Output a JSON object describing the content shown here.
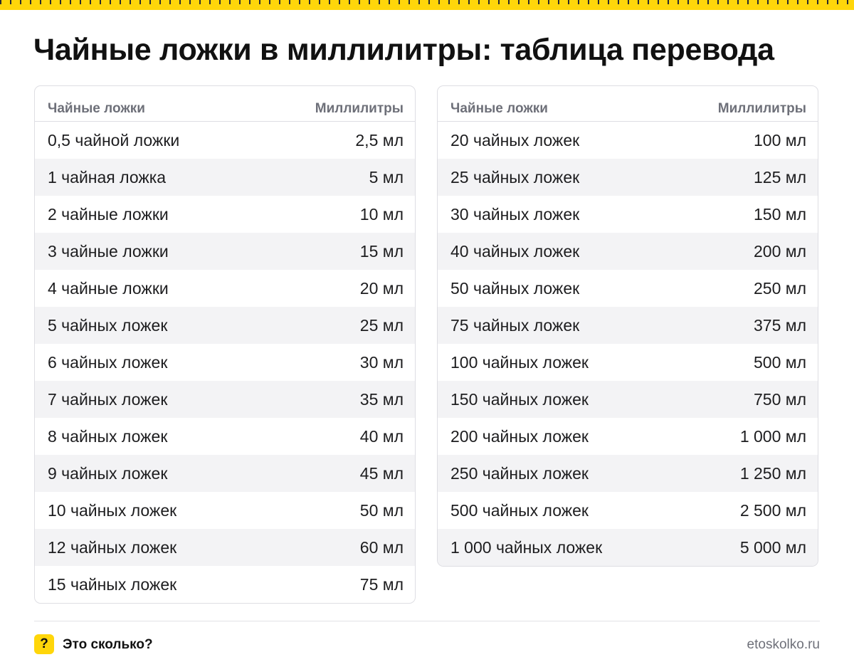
{
  "title": "Чайные ложки в миллилитры: таблица перевода",
  "tables": [
    {
      "headers": {
        "left": "Чайные ложки",
        "right": "Миллилитры"
      },
      "rows": [
        {
          "left": "0,5 чайной ложки",
          "right": "2,5 мл"
        },
        {
          "left": "1 чайная ложка",
          "right": "5 мл"
        },
        {
          "left": "2 чайные ложки",
          "right": "10 мл"
        },
        {
          "left": "3 чайные ложки",
          "right": "15 мл"
        },
        {
          "left": "4 чайные ложки",
          "right": "20 мл"
        },
        {
          "left": "5 чайных ложек",
          "right": "25 мл"
        },
        {
          "left": "6 чайных ложек",
          "right": "30 мл"
        },
        {
          "left": "7 чайных ложек",
          "right": "35 мл"
        },
        {
          "left": "8 чайных ложек",
          "right": "40 мл"
        },
        {
          "left": "9 чайных ложек",
          "right": "45 мл"
        },
        {
          "left": "10 чайных ложек",
          "right": "50 мл"
        },
        {
          "left": "12 чайных ложек",
          "right": "60 мл"
        },
        {
          "left": "15 чайных ложек",
          "right": "75 мл"
        }
      ]
    },
    {
      "headers": {
        "left": "Чайные ложки",
        "right": "Миллилитры"
      },
      "rows": [
        {
          "left": "20 чайных ложек",
          "right": "100 мл"
        },
        {
          "left": "25 чайных ложек",
          "right": "125 мл"
        },
        {
          "left": "30 чайных ложек",
          "right": "150 мл"
        },
        {
          "left": "40 чайных ложек",
          "right": "200 мл"
        },
        {
          "left": "50 чайных ложек",
          "right": "250 мл"
        },
        {
          "left": "75 чайных ложек",
          "right": "375 мл"
        },
        {
          "left": "100 чайных ложек",
          "right": "500 мл"
        },
        {
          "left": "150 чайных ложек",
          "right": "750 мл"
        },
        {
          "left": "200 чайных ложек",
          "right": "1 000 мл"
        },
        {
          "left": "250 чайных ложек",
          "right": "1 250 мл"
        },
        {
          "left": "500 чайных ложек",
          "right": "2 500 мл"
        },
        {
          "left": "1 000 чайных ложек",
          "right": "5 000 мл"
        }
      ]
    }
  ],
  "footer": {
    "logo_symbol": "?",
    "brand": "Это сколько?",
    "site": "etoskolko.ru"
  },
  "colors": {
    "accent": "#ffd60a",
    "header_text": "#6e7079",
    "row_stripe": "#f3f3f5",
    "border": "#dedee3"
  }
}
